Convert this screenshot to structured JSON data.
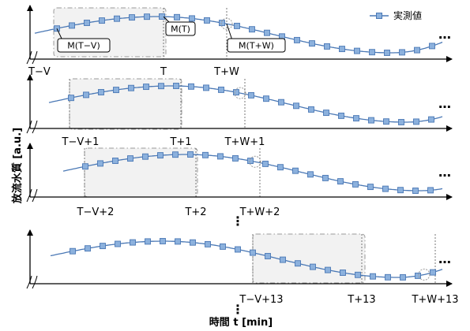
{
  "legend": {
    "label": "実測値"
  },
  "y_axis_title": "放流水質 [a.u.]",
  "x_axis_title": "時間 t [min]",
  "colors": {
    "line": "#4a78b5",
    "marker_fill": "#8cb1dd",
    "marker_stroke": "#4a78b5",
    "window_fill": "#f2f2f2",
    "window_stroke": "#9a9a9a"
  },
  "panels": [
    {
      "ticks": [
        "T−V",
        "T",
        "T+W"
      ],
      "point_labels": [
        "M(T−V)",
        "M(T)",
        "M(T+W)"
      ],
      "ellipsis": "…"
    },
    {
      "ticks": [
        "T−V+1",
        "T+1",
        "T+W+1"
      ],
      "ellipsis": "…"
    },
    {
      "ticks": [
        "T−V+2",
        "T+2",
        "T+W+2"
      ],
      "ellipsis": "…"
    },
    {
      "ticks": [
        "T−V+13",
        "T+13",
        "T+W+13"
      ],
      "ellipsis": "…"
    }
  ]
}
